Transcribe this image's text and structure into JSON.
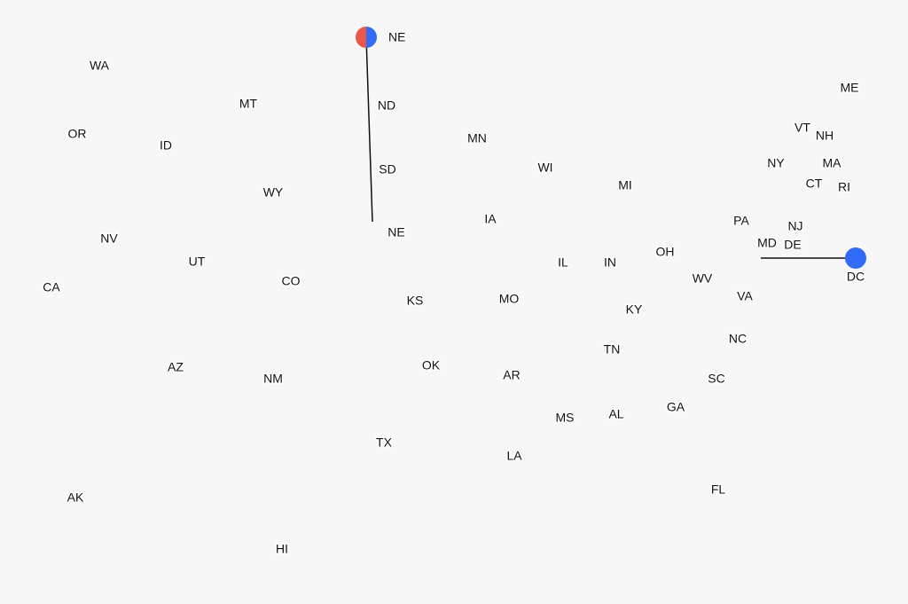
{
  "states": [
    {
      "label": "WA",
      "color": "#326bf5"
    },
    {
      "label": "OR",
      "color": "#326bf5"
    },
    {
      "label": "CA",
      "color": "#326bf5"
    },
    {
      "label": "NV",
      "color": "#a8a8a8"
    },
    {
      "label": "ID",
      "color": "#ea564a"
    },
    {
      "label": "MT",
      "color": "#ea564a"
    },
    {
      "label": "WY",
      "color": "#ea564a"
    },
    {
      "label": "UT",
      "color": "#ea564a"
    },
    {
      "label": "CO",
      "color": "#326bf5"
    },
    {
      "label": "AZ",
      "color": "#a8a8a8"
    },
    {
      "label": "NM",
      "color": "#326bf5"
    },
    {
      "label": "ND",
      "color": "#ea564a"
    },
    {
      "label": "SD",
      "color": "#ea564a"
    },
    {
      "label": "NE",
      "color": "#ea564a"
    },
    {
      "label": "KS",
      "color": "#ea564a"
    },
    {
      "label": "OK",
      "color": "#ea564a"
    },
    {
      "label": "TX",
      "color": "#ea564a"
    },
    {
      "label": "MN",
      "color": "#326bf5"
    },
    {
      "label": "IA",
      "color": "#ea564a"
    },
    {
      "label": "MO",
      "color": "#ea564a"
    },
    {
      "label": "AR",
      "color": "#ea564a"
    },
    {
      "label": "LA",
      "color": "#ea564a"
    },
    {
      "label": "WI",
      "color": "#a8a8a8"
    },
    {
      "label": "IL",
      "color": "#326bf5"
    },
    {
      "label": "MI",
      "color": "#a8a8a8"
    },
    {
      "label": "IN",
      "color": "#ea564a"
    },
    {
      "label": "OH",
      "color": "#ea564a"
    },
    {
      "label": "KY",
      "color": "#ea564a"
    },
    {
      "label": "TN",
      "color": "#ea564a"
    },
    {
      "label": "MS",
      "color": "#ea564a"
    },
    {
      "label": "AL",
      "color": "#ea564a"
    },
    {
      "label": "GA",
      "color": "#a8a8a8"
    },
    {
      "label": "FL",
      "color": "#ea564a"
    },
    {
      "label": "SC",
      "color": "#ea564a"
    },
    {
      "label": "NC",
      "color": "#a8a8a8"
    },
    {
      "label": "VA",
      "color": "#326bf5"
    },
    {
      "label": "WV",
      "color": "#ea564a"
    },
    {
      "label": "PA",
      "color": "#a8a8a8"
    },
    {
      "label": "NY",
      "color": "#326bf5"
    },
    {
      "label": "MD",
      "color": "#326bf5"
    },
    {
      "label": "DE",
      "color": "#326bf5"
    },
    {
      "label": "NJ",
      "color": "#326bf5"
    },
    {
      "label": "VT",
      "color": "#326bf5"
    },
    {
      "label": "NH",
      "color": "#326bf5"
    },
    {
      "label": "ME",
      "color": "#326bf5"
    },
    {
      "label": "MA",
      "color": "#326bf5"
    },
    {
      "label": "CT",
      "color": "#326bf5"
    },
    {
      "label": "RI",
      "color": "#326bf5"
    },
    {
      "label": "AK",
      "color": "#a8a8a8"
    },
    {
      "label": "HI",
      "color": "#326bf5"
    }
  ],
  "markers": [
    {
      "label": "NE",
      "colors": [
        "#ea564a",
        "#326bf5"
      ]
    },
    {
      "label": "DC",
      "colors": [
        "#326bf5"
      ]
    }
  ]
}
